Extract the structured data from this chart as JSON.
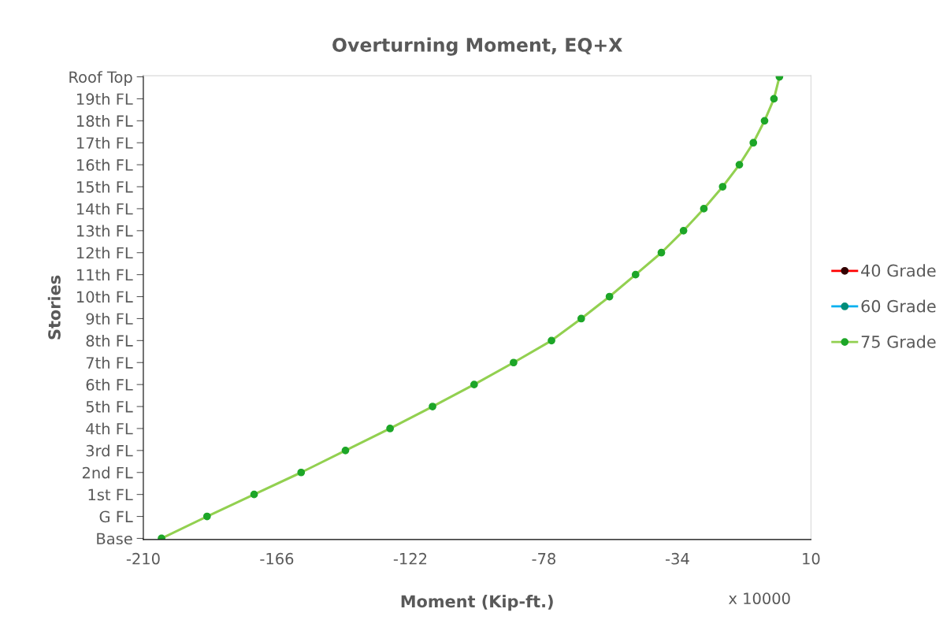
{
  "chart_data": {
    "type": "line",
    "title": "Overturning Moment, EQ+X",
    "xlabel": "Moment (Kip-ft.)",
    "ylabel": "Stories",
    "orientation": "horizontal",
    "categories": [
      "Roof Top",
      "19th FL",
      "18th FL",
      "17th FL",
      "16th FL",
      "15th FL",
      "14th FL",
      "13th FL",
      "12th FL",
      "11th FL",
      "10th FL",
      "9th FL",
      "8th FL",
      "7th FL",
      "6th FL",
      "5th FL",
      "4th FL",
      "3rd FL",
      "2nd FL",
      "1st FL",
      "G FL",
      "Base"
    ],
    "series": [
      {
        "name": "40 Grade",
        "color": "#ff0000",
        "values": [
          null,
          null,
          null,
          null,
          null,
          null,
          null,
          null,
          null,
          null,
          null,
          null,
          null,
          null,
          null,
          null,
          null,
          null,
          null,
          null,
          null,
          null
        ]
      },
      {
        "name": "60 Grade",
        "color": "#00b0f0",
        "values": [
          null,
          null,
          null,
          null,
          null,
          null,
          null,
          null,
          null,
          null,
          null,
          null,
          null,
          null,
          null,
          null,
          null,
          null,
          null,
          null,
          null,
          null
        ]
      },
      {
        "name": "75 Grade",
        "color": "#92d050",
        "values": [
          -0.4,
          -2.2,
          -5.3,
          -9,
          -13.6,
          -19.1,
          -25.3,
          -32,
          -39.3,
          -47.8,
          -56.4,
          -65.7,
          -75.5,
          -88,
          -101,
          -114.7,
          -128.7,
          -143.4,
          -158,
          -173.5,
          -189,
          -204
        ]
      }
    ],
    "xlim": [
      -210,
      10
    ],
    "xticks": [
      -210,
      -166,
      -122,
      -78,
      -34,
      10
    ],
    "grid": false,
    "legend": "right",
    "marker": "circle",
    "line_style": "solid",
    "annotations": [
      "x 10000"
    ]
  }
}
